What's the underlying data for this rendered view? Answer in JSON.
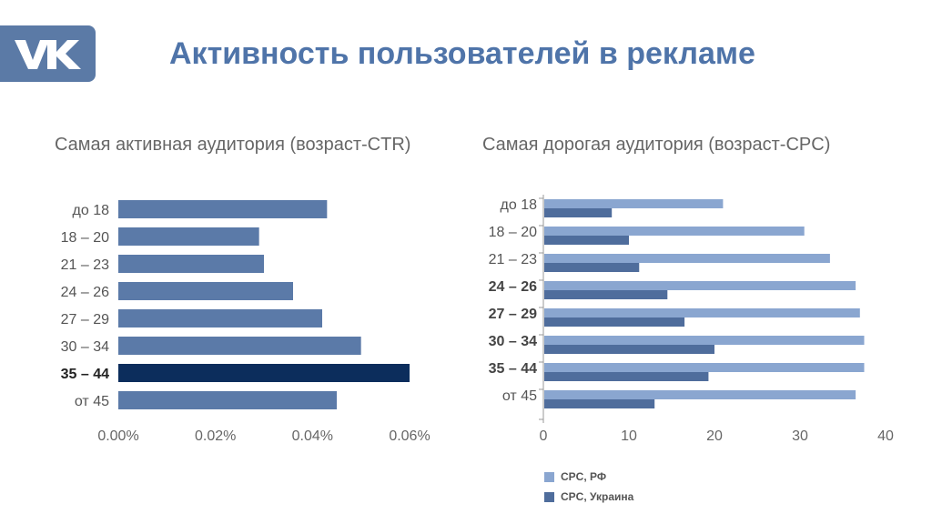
{
  "title": "Активность пользователей в рекламе",
  "logo": {
    "name": "VK",
    "color": "#5b7aa6"
  },
  "chart_data": [
    {
      "type": "bar",
      "orientation": "horizontal",
      "title": "Самая активная аудитория (возраст-CTR)",
      "categories": [
        "до 18",
        "18 – 20",
        "21 – 23",
        "24 – 26",
        "27 – 29",
        "30 – 34",
        "35 – 44",
        "от 45"
      ],
      "values": [
        0.043,
        0.029,
        0.03,
        0.036,
        0.042,
        0.05,
        0.06,
        0.045
      ],
      "value_unit": "%",
      "ticks": [
        "0.00%",
        "0.02%",
        "0.04%",
        "0.06%"
      ],
      "xlim": [
        0,
        0.06
      ],
      "highlight": "35 – 44",
      "colors": {
        "bar": "#5b7aa8",
        "highlight": "#0c2d5c"
      }
    },
    {
      "type": "bar",
      "orientation": "horizontal",
      "title": "Самая дорогая аудитория (возраст-CPC)",
      "categories": [
        "до 18",
        "18 – 20",
        "21 – 23",
        "24 – 26",
        "27 – 29",
        "30 – 34",
        "35 – 44",
        "от 45"
      ],
      "bold_categories": [
        "24 – 26",
        "27 – 29",
        "30 – 34",
        "35 – 44"
      ],
      "series": [
        {
          "name": "CPC, РФ",
          "values": [
            21,
            30.5,
            33.5,
            36.5,
            37,
            37.5,
            37.5,
            36.5
          ],
          "color": "#8aa6d0"
        },
        {
          "name": "CPC, Украина",
          "values": [
            8,
            10,
            11.2,
            14.5,
            16.5,
            20,
            19.3,
            13
          ],
          "color": "#4f6d9c"
        }
      ],
      "ticks": [
        "0",
        "10",
        "20",
        "30",
        "40"
      ],
      "xlim": [
        0,
        40
      ],
      "legend_position": "bottom-left"
    }
  ]
}
